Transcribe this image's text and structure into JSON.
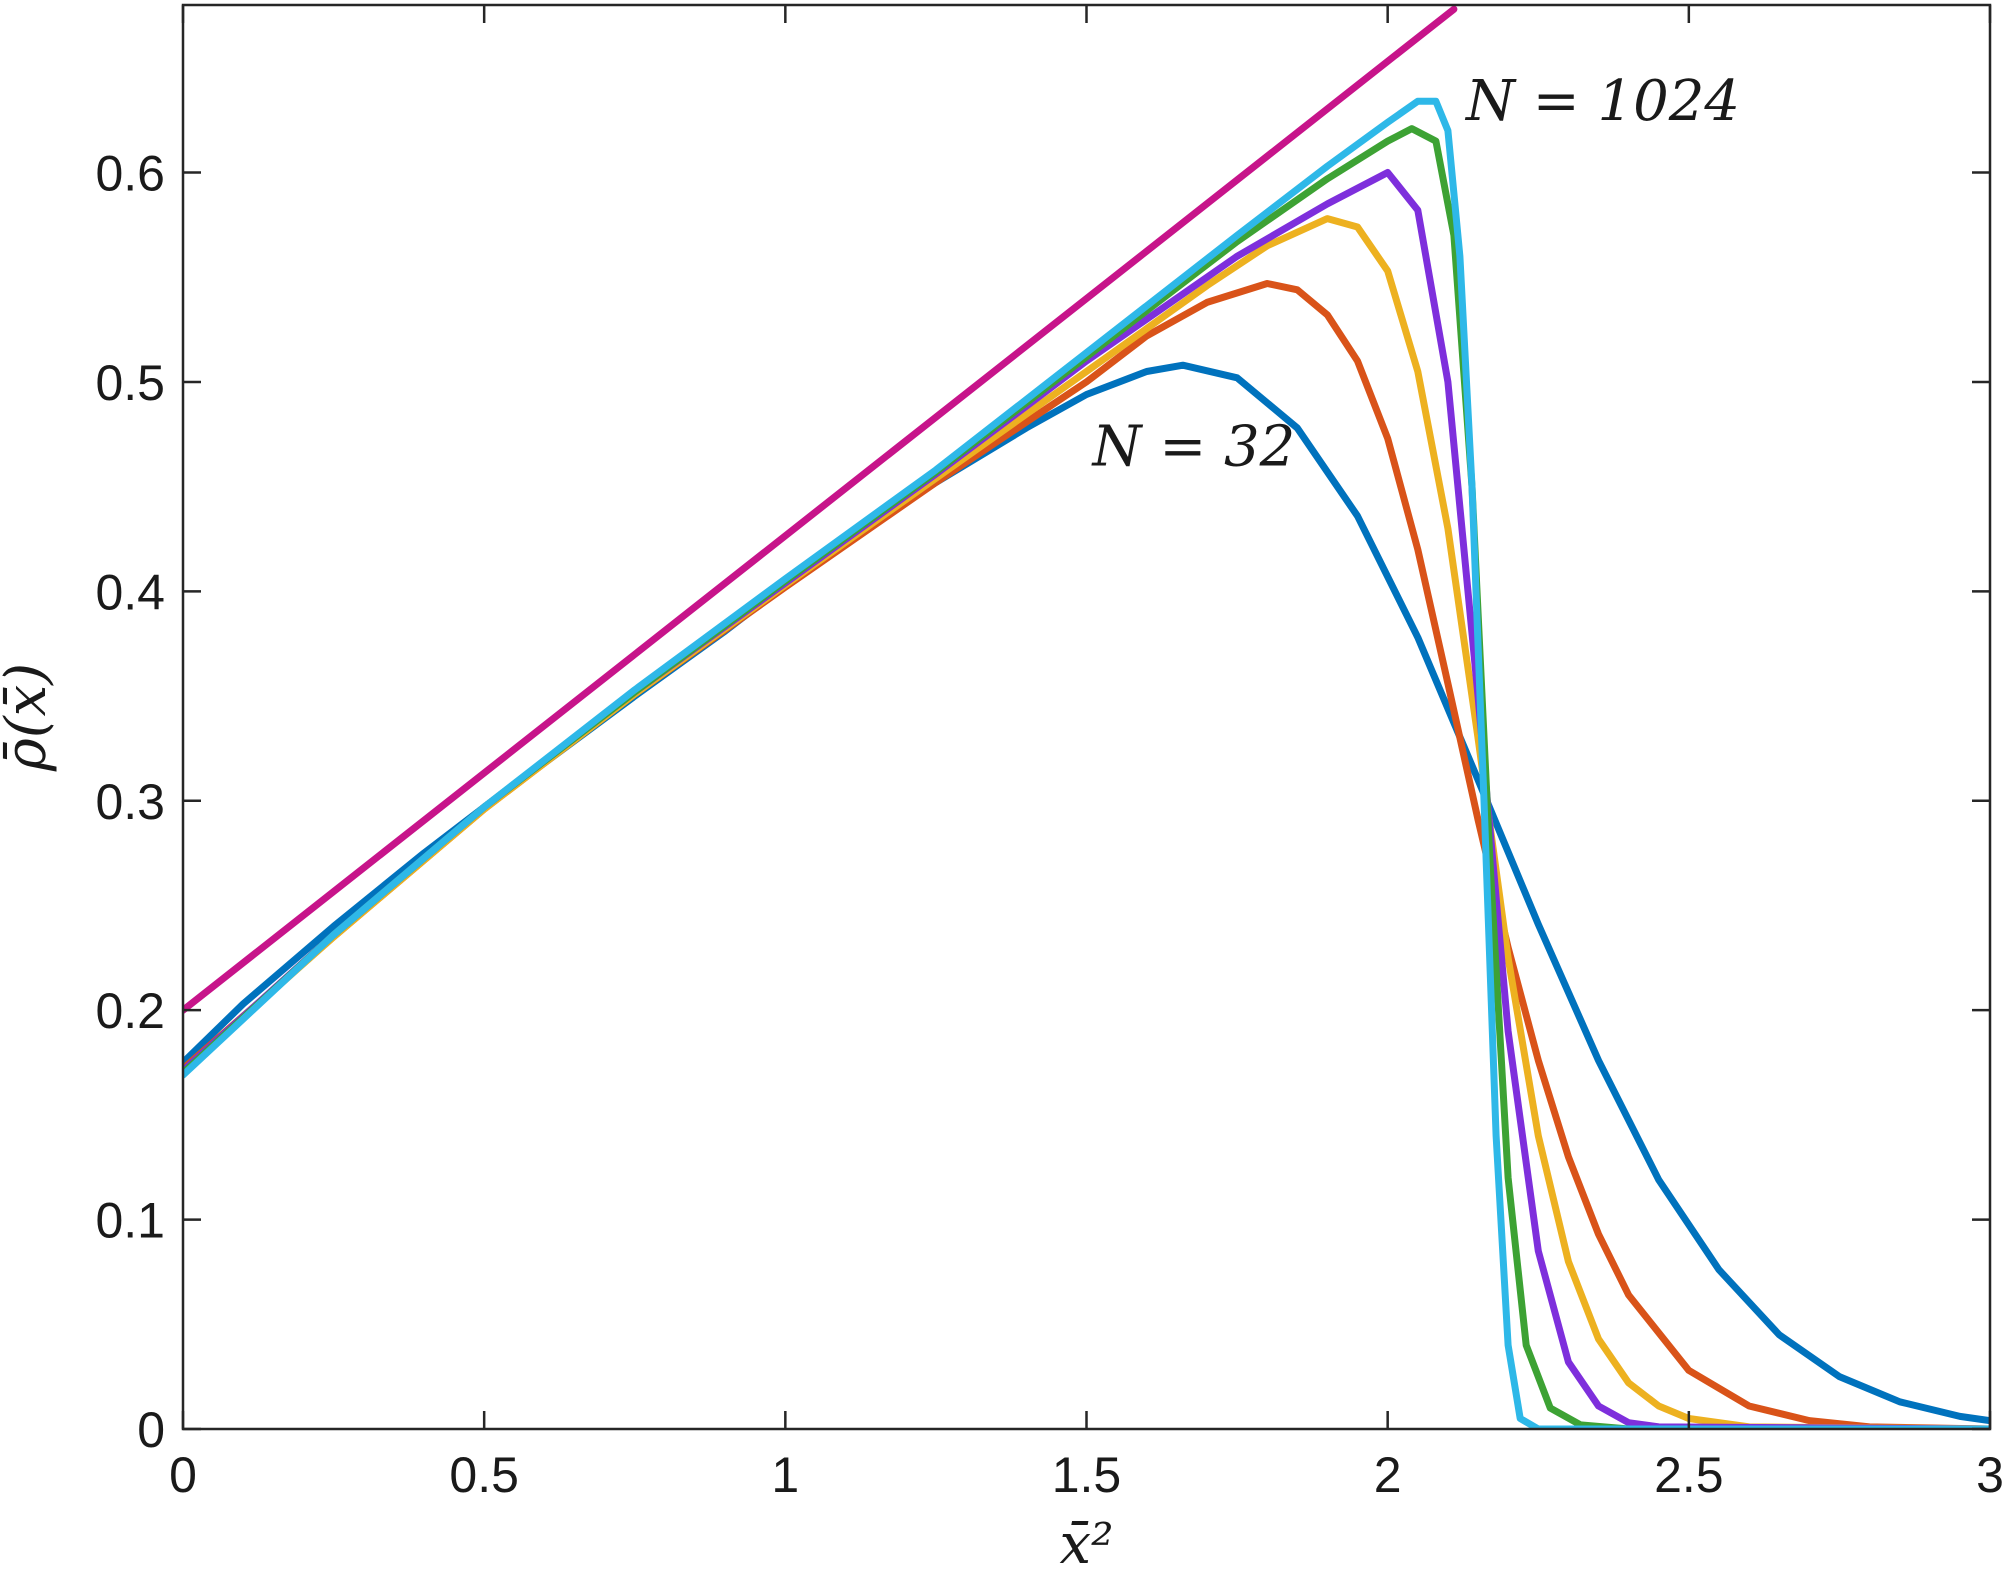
{
  "chart_data": {
    "type": "line",
    "title": "",
    "xlabel": "x̄²",
    "ylabel": "ρ̄(x̄)",
    "xlim": [
      0,
      3
    ],
    "ylim": [
      0,
      0.68
    ],
    "xticks": [
      0,
      0.5,
      1,
      1.5,
      2,
      2.5,
      3
    ],
    "xtick_labels": [
      "0",
      "0.5",
      "1",
      "1.5",
      "2",
      "2.5",
      "3"
    ],
    "yticks": [
      0,
      0.1,
      0.2,
      0.3,
      0.4,
      0.5,
      0.6
    ],
    "ytick_labels": [
      "0",
      "0.1",
      "0.2",
      "0.3",
      "0.4",
      "0.5",
      "0.6"
    ],
    "grid": false,
    "annotations": [
      {
        "text": "N = 32",
        "x": 1.51,
        "y": 0.46
      },
      {
        "text": "N = 1024",
        "x": 2.13,
        "y": 0.625
      }
    ],
    "series": [
      {
        "color": "#c7148a",
        "x": [
          0,
          2.11
        ],
        "y": [
          0.2,
          0.678
        ]
      },
      {
        "color": "#0072bd",
        "x": [
          0,
          0.1,
          0.25,
          0.4,
          0.5,
          0.6,
          0.75,
          0.9,
          1.0,
          1.1,
          1.25,
          1.4,
          1.5,
          1.6,
          1.66,
          1.75,
          1.85,
          1.95,
          2.05,
          2.15,
          2.25,
          2.35,
          2.45,
          2.55,
          2.65,
          2.75,
          2.85,
          2.95,
          3.0
        ],
        "y": [
          0.175,
          0.203,
          0.24,
          0.275,
          0.297,
          0.318,
          0.35,
          0.381,
          0.403,
          0.424,
          0.452,
          0.478,
          0.494,
          0.505,
          0.508,
          0.502,
          0.478,
          0.436,
          0.378,
          0.31,
          0.241,
          0.176,
          0.119,
          0.076,
          0.045,
          0.025,
          0.013,
          0.006,
          0.004
        ]
      },
      {
        "color": "#d95319",
        "x": [
          0,
          0.25,
          0.5,
          0.75,
          1.0,
          1.25,
          1.5,
          1.6,
          1.7,
          1.8,
          1.85,
          1.9,
          1.95,
          2.0,
          2.05,
          2.1,
          2.15,
          2.2,
          2.25,
          2.3,
          2.35,
          2.4,
          2.5,
          2.6,
          2.7,
          2.8,
          3.0
        ],
        "y": [
          0.172,
          0.235,
          0.296,
          0.351,
          0.402,
          0.452,
          0.5,
          0.522,
          0.538,
          0.547,
          0.544,
          0.532,
          0.51,
          0.473,
          0.42,
          0.356,
          0.291,
          0.23,
          0.176,
          0.13,
          0.093,
          0.064,
          0.028,
          0.011,
          0.004,
          0.001,
          0.0
        ]
      },
      {
        "color": "#edb120",
        "x": [
          0,
          0.25,
          0.5,
          0.75,
          1.0,
          1.25,
          1.5,
          1.7,
          1.8,
          1.9,
          1.95,
          2.0,
          2.05,
          2.1,
          2.15,
          2.2,
          2.25,
          2.3,
          2.35,
          2.4,
          2.45,
          2.5,
          2.6,
          3.0
        ],
        "y": [
          0.171,
          0.235,
          0.296,
          0.351,
          0.403,
          0.454,
          0.505,
          0.546,
          0.565,
          0.578,
          0.574,
          0.553,
          0.505,
          0.43,
          0.33,
          0.225,
          0.14,
          0.08,
          0.043,
          0.022,
          0.011,
          0.005,
          0.001,
          0.0
        ]
      },
      {
        "color": "#7e2fdc",
        "x": [
          0,
          0.25,
          0.5,
          0.75,
          1.0,
          1.25,
          1.5,
          1.75,
          1.9,
          2.0,
          2.05,
          2.1,
          2.15,
          2.2,
          2.25,
          2.3,
          2.35,
          2.4,
          2.45,
          3.0
        ],
        "y": [
          0.171,
          0.236,
          0.297,
          0.352,
          0.404,
          0.456,
          0.51,
          0.56,
          0.585,
          0.6,
          0.582,
          0.5,
          0.35,
          0.19,
          0.085,
          0.032,
          0.011,
          0.003,
          0.001,
          0.0
        ]
      },
      {
        "color": "#3da234",
        "x": [
          0,
          0.25,
          0.5,
          0.75,
          1.0,
          1.25,
          1.5,
          1.75,
          1.9,
          2.0,
          2.04,
          2.08,
          2.11,
          2.14,
          2.17,
          2.2,
          2.23,
          2.27,
          2.32,
          2.4,
          3.0
        ],
        "y": [
          0.17,
          0.236,
          0.297,
          0.352,
          0.405,
          0.457,
          0.512,
          0.567,
          0.597,
          0.615,
          0.621,
          0.615,
          0.57,
          0.45,
          0.27,
          0.12,
          0.04,
          0.01,
          0.002,
          0.0,
          0.0
        ]
      },
      {
        "color": "#2eb8e8",
        "x": [
          0,
          0.25,
          0.5,
          0.75,
          1.0,
          1.25,
          1.5,
          1.75,
          1.9,
          2.0,
          2.05,
          2.08,
          2.1,
          2.12,
          2.14,
          2.16,
          2.18,
          2.2,
          2.22,
          2.25,
          3.0
        ],
        "y": [
          0.169,
          0.236,
          0.297,
          0.353,
          0.406,
          0.458,
          0.514,
          0.57,
          0.603,
          0.624,
          0.634,
          0.634,
          0.62,
          0.56,
          0.45,
          0.3,
          0.14,
          0.04,
          0.005,
          0.0,
          0.0
        ]
      }
    ]
  }
}
